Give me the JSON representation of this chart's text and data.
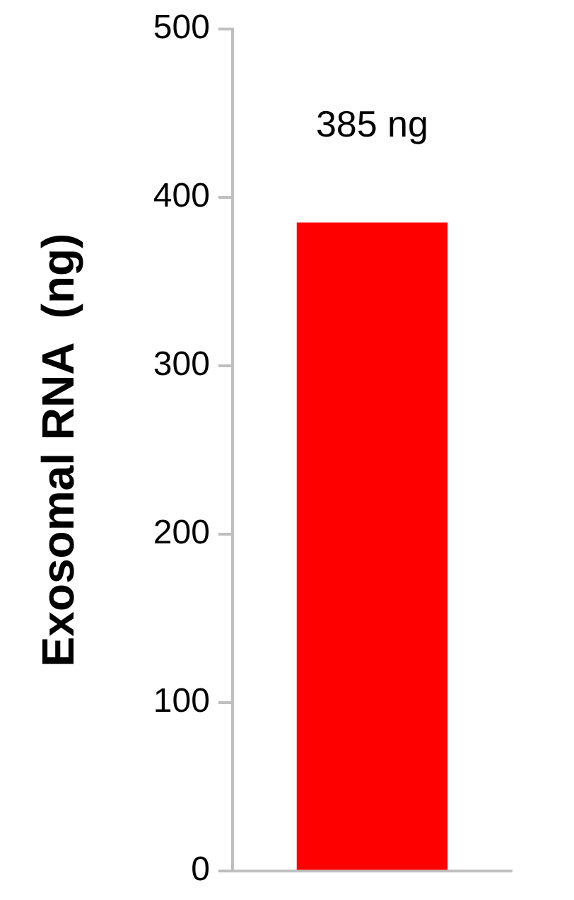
{
  "chart_data": {
    "type": "bar",
    "ylabel": "Exosomal RNA  (ng)",
    "categories": [
      null
    ],
    "values": [
      385
    ],
    "color": "#ff0000",
    "value_labels": [
      "385 ng"
    ],
    "ylim": [
      0,
      500
    ],
    "yticks": [
      0,
      100,
      200,
      300,
      400,
      500
    ],
    "grid": false,
    "legend": false
  }
}
